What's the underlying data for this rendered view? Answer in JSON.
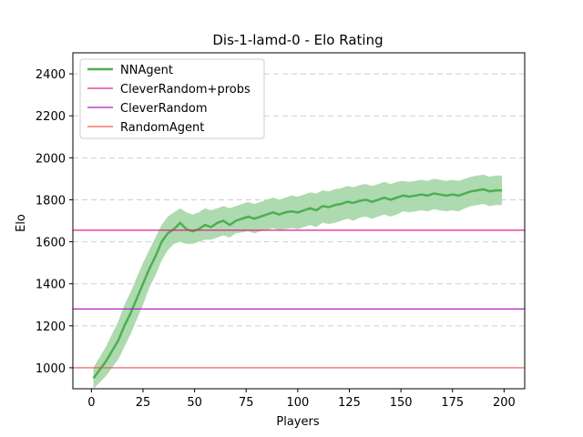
{
  "chart_data": {
    "type": "line",
    "title": "Dis-1-lamd-0 - Elo Rating",
    "xlabel": "Players",
    "ylabel": "Elo",
    "xlim": [
      -9,
      210
    ],
    "ylim": [
      900,
      2500
    ],
    "xticks": [
      0,
      25,
      50,
      75,
      100,
      125,
      150,
      175,
      200
    ],
    "yticks": [
      1000,
      1200,
      1400,
      1600,
      1800,
      2000,
      2200,
      2400
    ],
    "grid": "y-dashed",
    "legend_position": "upper-left",
    "series": [
      {
        "name": "NNAgent",
        "kind": "line-with-band",
        "color": "#4caf50",
        "band_color": "#a5d6a7",
        "x": [
          1,
          4,
          7,
          10,
          13,
          16,
          19,
          22,
          25,
          28,
          31,
          34,
          37,
          40,
          43,
          46,
          49,
          52,
          55,
          58,
          61,
          64,
          67,
          70,
          73,
          76,
          79,
          82,
          85,
          88,
          91,
          94,
          97,
          100,
          103,
          106,
          109,
          112,
          115,
          118,
          121,
          124,
          127,
          130,
          133,
          136,
          139,
          142,
          145,
          148,
          151,
          154,
          157,
          160,
          163,
          166,
          169,
          172,
          175,
          178,
          181,
          184,
          187,
          190,
          193,
          196,
          199
        ],
        "y": [
          950,
          990,
          1030,
          1080,
          1130,
          1200,
          1260,
          1330,
          1400,
          1470,
          1530,
          1600,
          1640,
          1660,
          1690,
          1660,
          1650,
          1660,
          1680,
          1670,
          1690,
          1700,
          1680,
          1700,
          1710,
          1720,
          1710,
          1720,
          1730,
          1740,
          1730,
          1740,
          1745,
          1740,
          1750,
          1760,
          1750,
          1770,
          1765,
          1775,
          1780,
          1790,
          1785,
          1795,
          1800,
          1790,
          1800,
          1810,
          1800,
          1810,
          1820,
          1815,
          1820,
          1825,
          1820,
          1830,
          1825,
          1820,
          1825,
          1820,
          1830,
          1840,
          1845,
          1850,
          1840,
          1845,
          1845
        ],
        "lower": [
          900,
          930,
          960,
          1000,
          1040,
          1100,
          1160,
          1230,
          1300,
          1380,
          1440,
          1510,
          1560,
          1590,
          1600,
          1590,
          1590,
          1600,
          1610,
          1610,
          1620,
          1630,
          1620,
          1640,
          1645,
          1650,
          1640,
          1650,
          1655,
          1665,
          1655,
          1660,
          1665,
          1660,
          1670,
          1680,
          1670,
          1690,
          1685,
          1690,
          1700,
          1710,
          1700,
          1715,
          1720,
          1710,
          1720,
          1730,
          1720,
          1730,
          1745,
          1740,
          1745,
          1750,
          1745,
          1755,
          1750,
          1745,
          1750,
          1745,
          1760,
          1770,
          1775,
          1780,
          1770,
          1775,
          1775
        ],
        "upper": [
          1000,
          1050,
          1100,
          1160,
          1220,
          1300,
          1360,
          1430,
          1500,
          1560,
          1620,
          1680,
          1720,
          1740,
          1760,
          1740,
          1730,
          1740,
          1760,
          1750,
          1760,
          1770,
          1760,
          1770,
          1780,
          1790,
          1780,
          1790,
          1800,
          1810,
          1800,
          1810,
          1820,
          1815,
          1825,
          1835,
          1830,
          1845,
          1840,
          1850,
          1855,
          1865,
          1860,
          1870,
          1875,
          1865,
          1875,
          1885,
          1875,
          1885,
          1890,
          1885,
          1890,
          1895,
          1890,
          1900,
          1895,
          1890,
          1895,
          1890,
          1900,
          1910,
          1915,
          1920,
          1910,
          1915,
          1915
        ]
      },
      {
        "name": "CleverRandom+probs",
        "kind": "hline",
        "color": "#e0218a",
        "value": 1655
      },
      {
        "name": "CleverRandom",
        "kind": "hline",
        "color": "#b020c0",
        "value": 1280
      },
      {
        "name": "RandomAgent",
        "kind": "hline",
        "color": "#ef5350",
        "value": 1000
      }
    ]
  }
}
